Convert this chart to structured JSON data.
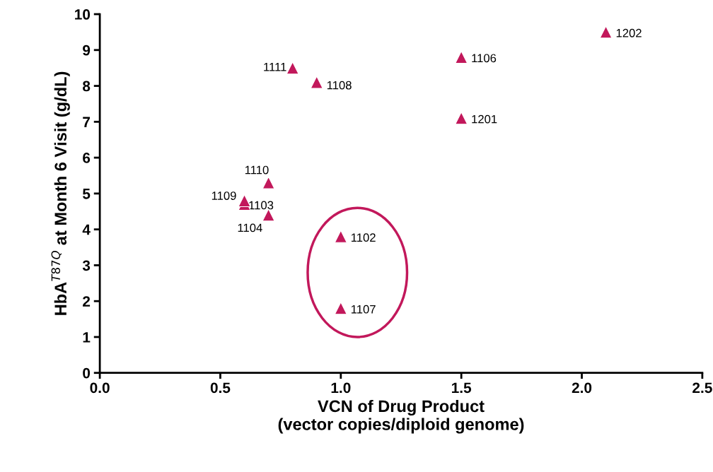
{
  "chart_data": {
    "type": "scatter",
    "xlabel": "VCN of Drug Product\n(vector copies/diploid genome)",
    "ylabel": "HbA$^{T87Q}$ at Month 6 Visit (g/dL)",
    "x": [
      2.1,
      1.5,
      0.8,
      0.9,
      1.5,
      0.7,
      0.6,
      0.6,
      0.7,
      1.0,
      1.0
    ],
    "series": [
      {
        "color": "#c2185b",
        "values": [
          9.5,
          8.8,
          8.5,
          8.1,
          7.1,
          5.3,
          4.8,
          4.7,
          4.4,
          3.8,
          1.8
        ]
      }
    ],
    "marker": "triangle",
    "xlim": [
      0.0,
      2.5
    ],
    "xticks": [
      {
        "value": 0,
        "label": "0.0"
      },
      0.5,
      {
        "value": 1,
        "label": "1.0"
      },
      1.5,
      {
        "value": 2,
        "label": "2.0"
      },
      2.5
    ],
    "ylim": [
      0,
      10
    ],
    "yticks": [
      0,
      1,
      2,
      3,
      4,
      5,
      6,
      7,
      8,
      9,
      10
    ],
    "grid": false,
    "annotations": [
      {
        "text": "1202",
        "x": 2.1,
        "y": 9.5
      },
      {
        "text": "1106",
        "x": 1.5,
        "y": 8.8
      },
      {
        "text": "1111",
        "x": 0.8,
        "y": 8.5
      },
      {
        "text": "1108",
        "x": 0.9,
        "y": 8.1
      },
      {
        "text": "1201",
        "x": 1.5,
        "y": 7.1
      },
      {
        "text": "1110",
        "x": 0.7,
        "y": 5.3
      },
      {
        "text": "1109",
        "x": 0.6,
        "y": 4.8
      },
      {
        "text": "1103",
        "x": 0.6,
        "y": 4.7
      },
      {
        "text": "1104",
        "x": 0.7,
        "y": 4.4
      },
      {
        "text": "1102",
        "x": 1.0,
        "y": 3.8
      },
      {
        "text": "1107",
        "x": 1.0,
        "y": 1.8
      }
    ]
  }
}
